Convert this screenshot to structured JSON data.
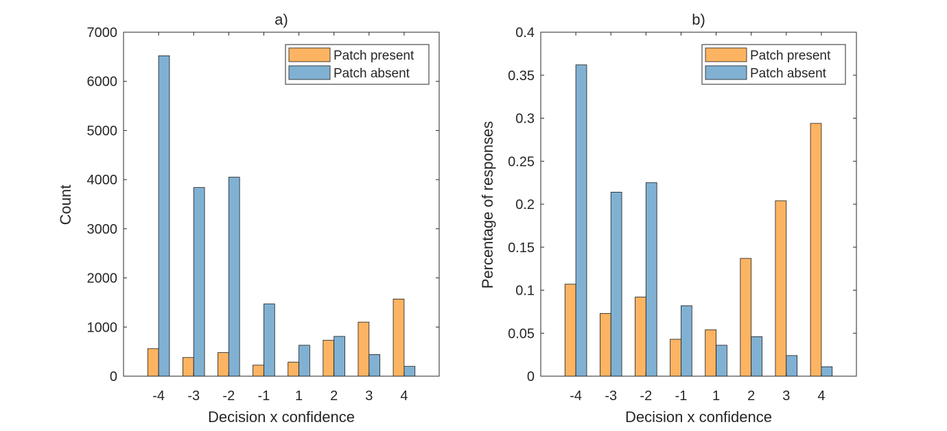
{
  "colors": {
    "present": "#fdb462",
    "absent": "#80b1d3",
    "axis": "#262626",
    "edge": "#1a1a1a"
  },
  "chart_data": [
    {
      "type": "bar",
      "title": "a)",
      "xlabel": "Decision x confidence",
      "ylabel": "Count",
      "categories": [
        "-4",
        "-3",
        "-2",
        "-1",
        "1",
        "2",
        "3",
        "4"
      ],
      "ylim": [
        0,
        7000
      ],
      "yticks": [
        "0",
        "1000",
        "2000",
        "3000",
        "4000",
        "5000",
        "6000",
        "7000"
      ],
      "legend_position": "top-right",
      "series": [
        {
          "name": "Patch present",
          "color": "#fdb462",
          "values": [
            560,
            380,
            480,
            225,
            285,
            730,
            1100,
            1570
          ]
        },
        {
          "name": "Patch absent",
          "color": "#80b1d3",
          "values": [
            6520,
            3840,
            4050,
            1470,
            630,
            810,
            440,
            200
          ]
        }
      ]
    },
    {
      "type": "bar",
      "title": "b)",
      "xlabel": "Decision x confidence",
      "ylabel": "Percentage of responses",
      "categories": [
        "-4",
        "-3",
        "-2",
        "-1",
        "1",
        "2",
        "3",
        "4"
      ],
      "ylim": [
        0,
        0.4
      ],
      "yticks": [
        "0",
        "0.05",
        "0.1",
        "0.15",
        "0.2",
        "0.25",
        "0.3",
        "0.35",
        "0.4"
      ],
      "legend_position": "top-right",
      "series": [
        {
          "name": "Patch present",
          "color": "#fdb462",
          "values": [
            0.107,
            0.073,
            0.092,
            0.043,
            0.054,
            0.137,
            0.204,
            0.294
          ]
        },
        {
          "name": "Patch absent",
          "color": "#80b1d3",
          "values": [
            0.362,
            0.214,
            0.225,
            0.082,
            0.036,
            0.046,
            0.024,
            0.011
          ]
        }
      ]
    }
  ]
}
